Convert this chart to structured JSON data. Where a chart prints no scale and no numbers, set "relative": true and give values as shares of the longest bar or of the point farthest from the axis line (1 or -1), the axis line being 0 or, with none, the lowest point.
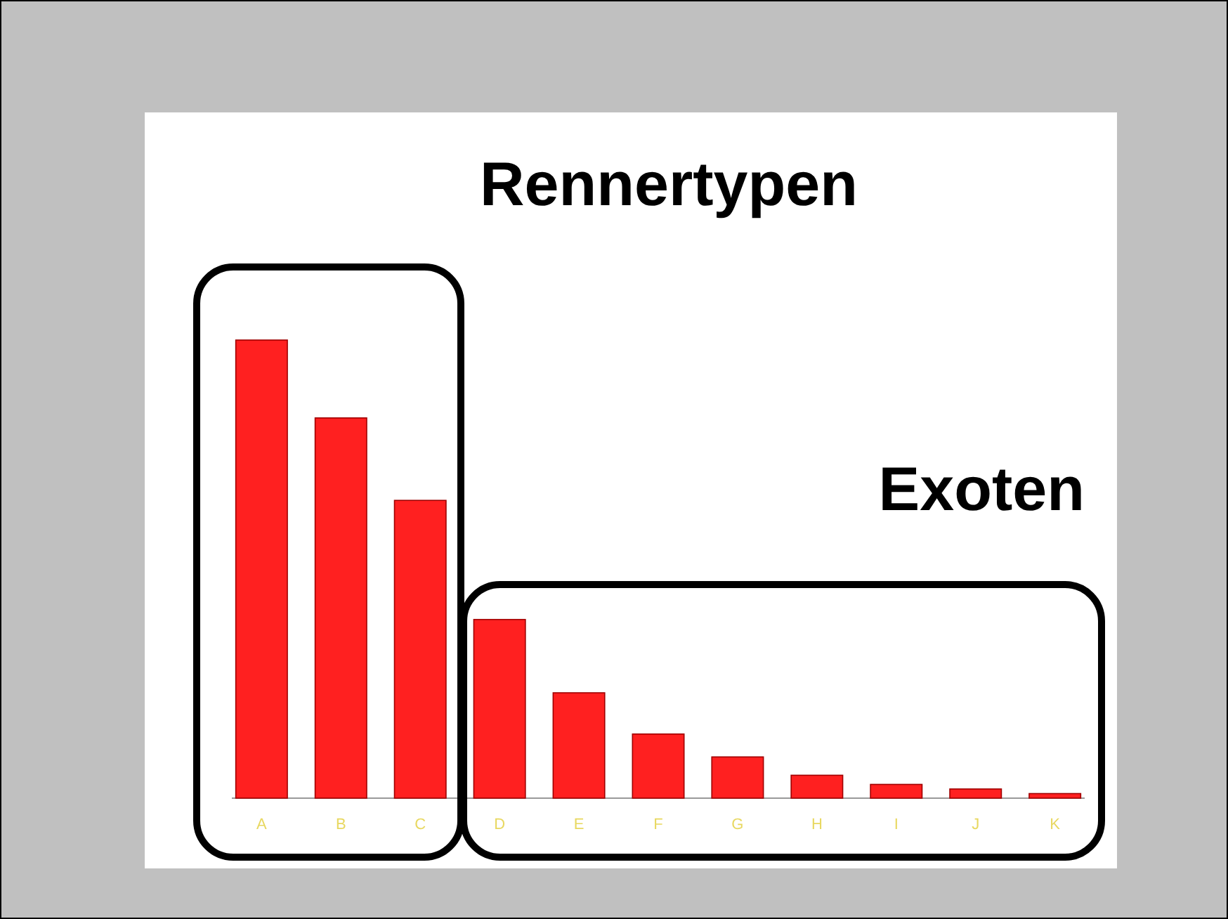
{
  "chart_data": {
    "type": "bar",
    "title": "Rennertypen",
    "annotations": [
      "Exoten"
    ],
    "relative": true,
    "categories": [
      "A",
      "B",
      "C",
      "D",
      "E",
      "F",
      "G",
      "H",
      "I",
      "J",
      "K"
    ],
    "values": [
      1,
      0.83,
      0.65,
      0.39,
      0.23,
      0.14,
      0.09,
      0.05,
      0.03,
      0.02,
      0.01
    ],
    "color": "#ff2020"
  }
}
